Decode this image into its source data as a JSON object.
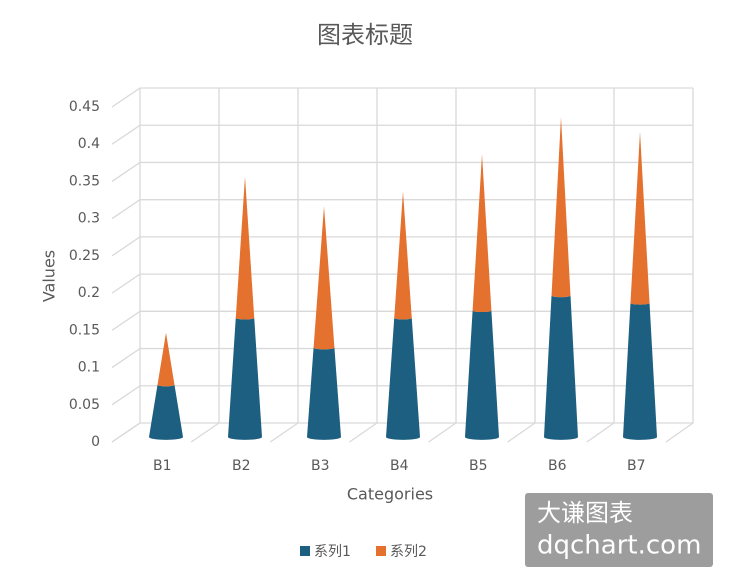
{
  "chart_data": {
    "type": "cone",
    "title": "图表标题",
    "x_label": "Categories",
    "y_label": "Values",
    "categories": [
      "B1",
      "B2",
      "B3",
      "B4",
      "B5",
      "B6",
      "B7"
    ],
    "series": [
      {
        "name": "系列1",
        "color": "#1d5f80",
        "values": [
          0.07,
          0.16,
          0.12,
          0.16,
          0.17,
          0.19,
          0.18
        ]
      },
      {
        "name": "系列2",
        "color": "#e5712f",
        "values": [
          0.07,
          0.19,
          0.19,
          0.17,
          0.21,
          0.24,
          0.23
        ]
      }
    ],
    "ylim": [
      0,
      0.45
    ],
    "yticks": [
      0,
      0.05,
      0.1,
      0.15,
      0.2,
      0.25,
      0.3,
      0.35,
      0.4,
      0.45
    ],
    "grid": true,
    "stacked": true,
    "legend": "bottom",
    "watermark": [
      "大谦图表",
      "dqchart.com"
    ]
  }
}
